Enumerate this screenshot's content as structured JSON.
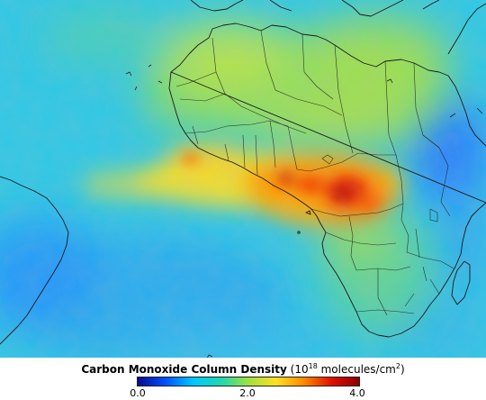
{
  "legend": {
    "title_bold": "Carbon Monoxide Column Density",
    "unit_open": "(10",
    "unit_exp": "18",
    "unit_mid": " molecules/cm",
    "unit_sq": "2",
    "unit_close": ")",
    "ticks": [
      "0.0",
      "2.0",
      "4.0"
    ],
    "gradient_colors": [
      "#0a0a8c",
      "#0050ff",
      "#00c8ff",
      "#1ed8b0",
      "#a0e040",
      "#ffe020",
      "#ff8a00",
      "#e01000",
      "#8a0000"
    ]
  },
  "map": {
    "background_color": "#2fc8e6",
    "plume_color_high": "#d40a0a",
    "plume_color_mid": "#ffb000",
    "land_north_color": "#9ee24a",
    "low_co_color": "#2a8cff"
  }
}
